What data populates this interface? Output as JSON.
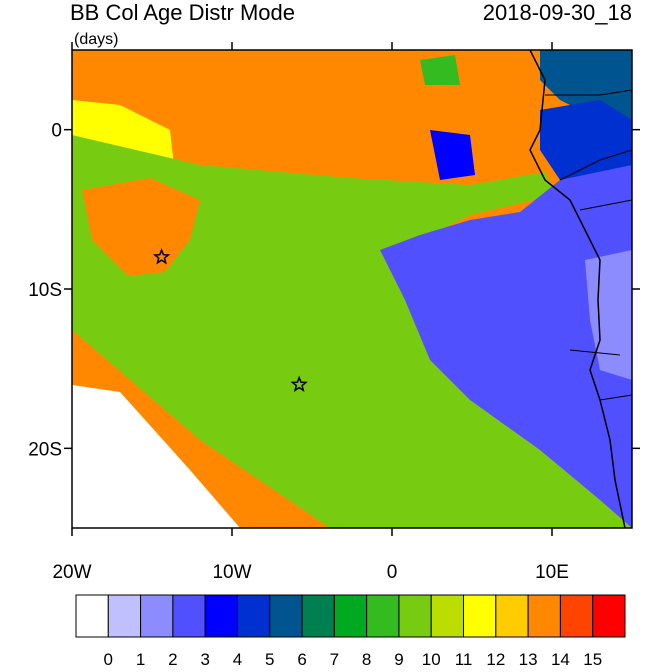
{
  "map_data": {
    "title": "BB Col Age Distr Mode",
    "units": "(days)",
    "date": "2018-09-30_18",
    "xlim": [
      -20,
      15
    ],
    "xticks": [
      {
        "value": -20,
        "label": "20W"
      },
      {
        "value": -10,
        "label": "10W"
      },
      0,
      {
        "value": 10,
        "label": "10E"
      }
    ],
    "ylim": [
      -25,
      5
    ],
    "yticks": [
      0,
      {
        "value": -10,
        "label": "10S"
      },
      {
        "value": -20,
        "label": "20S"
      }
    ],
    "markers": [
      {
        "lon": -14.4,
        "lat": -8
      },
      {
        "lon": -5.8,
        "lat": -16
      }
    ],
    "colorbar": {
      "levels": [
        0,
        1,
        2,
        3,
        4,
        5,
        6,
        7,
        8,
        9,
        10,
        11,
        12,
        13,
        14,
        15
      ],
      "colors": [
        "#ffffff",
        "#c0c0ff",
        "#8c8cff",
        "#5050ff",
        "#0000ff",
        "#0030d0",
        "#005590",
        "#008050",
        "#00aa20",
        "#33bb20",
        "#77cc11",
        "#bbdd00",
        "#ffff00",
        "#ffcc00",
        "#ff8800",
        "#ff4400",
        "#ff0000"
      ]
    }
  }
}
